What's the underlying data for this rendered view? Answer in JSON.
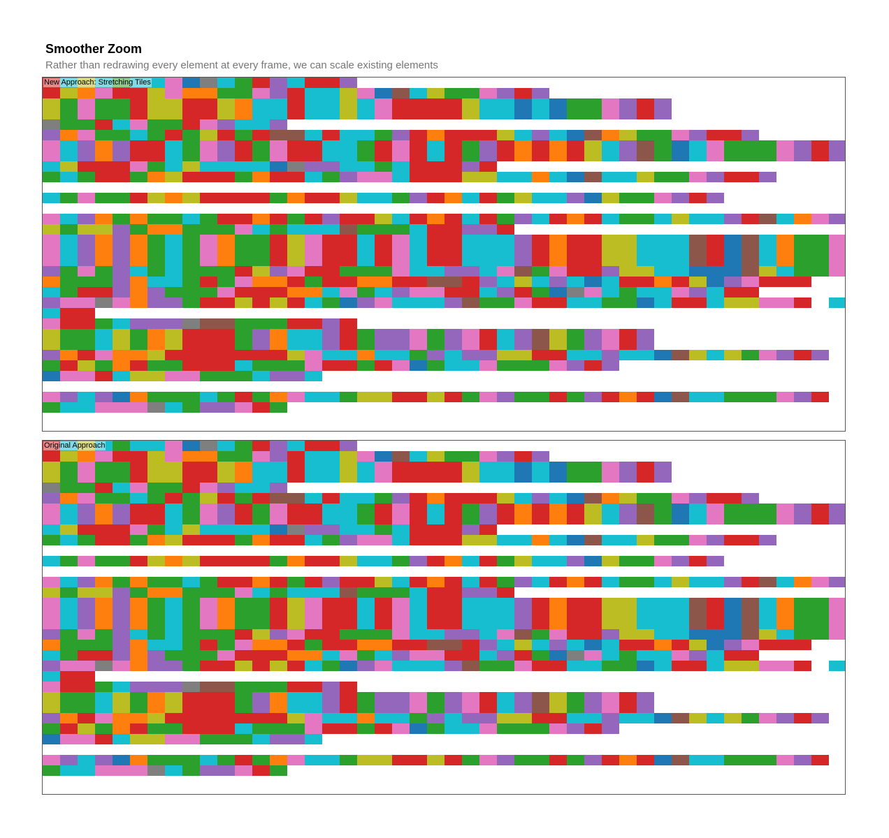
{
  "header": {
    "title": "Smoother Zoom",
    "subtitle": "Rather than redrawing every element at every frame, we can scale existing elements"
  },
  "panels": [
    {
      "id": "new",
      "label": "New Approach: Stretching Tiles"
    },
    {
      "id": "orig",
      "label": "Original Approach"
    }
  ],
  "chart_data": {
    "type": "heatmap",
    "title": "Smoother Zoom",
    "subtitle": "Rather than redrawing every element at every frame, we can scale existing elements",
    "palette": {
      "b": "#1f77b4",
      "o": "#ff7f0e",
      "g": "#2ca02c",
      "r": "#d62728",
      "p": "#9467bd",
      "n": "#8c564b",
      "k": "#e377c2",
      "a": "#7f7f7f",
      "y": "#bcbd22",
      "c": "#17becf"
    },
    "row_heights": [
      15,
      15,
      30,
      15,
      15,
      30,
      15,
      15,
      15,
      15,
      15,
      15,
      15,
      45,
      15,
      15,
      15,
      15,
      15,
      15,
      30,
      15,
      15,
      15,
      15,
      15,
      15
    ],
    "rows": [
      "rcycgcckbacgrpcrrp",
      "ryokrrykooggkprccykbncyggkprp",
      "ygkggryyrryoccrccyckrrrryccbcbggkprp",
      "aggrckggrkpccp",
      "pokggcgrgyrgrnncrccgprorrrycpcbnoyggkprrp",
      "kcpoprrcgkprgkrrccgrkrcrgprororycpngbckgggkprp",
      "cyrrrkgcyccccbappccgcrrrpr",
      "gcgrrgoyrrrgorrcgpkkcrrryyccocbnccyggkprrp",
      "",
      "cgkggryoyrrrrgorryccgprocrgyccpbyggkprp",
      "",
      "kcpogoggcgrrorgrprrycrorcrgpcrorcggcyccprncokpr",
      "ygyypgoogggkcgcccngggcrrppr",
      "kcpopogcgkoggrykrrcrkcrrcccprorryycccnrbncoggkprp",
      "pgkgpcgcgggrypkrrgggkccppckngkrrpyyccbbbnycggkprr",
      "ogggpoccgrgkoorgrroorrnnrpcycpcbcrrorybpkrrr",
      "cgrrpopgggkrrroockgcpkkrrcprgbakcgcckpcrr",
      "pkkakoppgrryryrcgbpkcccpnggkrrccggbcrrcyykkrdcrrkpr",
      "crr",
      "krrgcpppanngggrrpr",
      "yggcygoyrrrgpoccprgppkgpkrcpnygpkrp",
      "porkooyrrrrrrrykccoccgpcppyyrrccpccbnycygkprp",
      "grygorggrrrcgggkrrgrkbgcckgggkprp",
      "bkkrcyykkgggcppc",
      "",
      "kpcpbogggcgrgokccgyyrryrgkpggrgprorbnccgggkpr",
      "gcckkkacgppkrg"
    ]
  }
}
